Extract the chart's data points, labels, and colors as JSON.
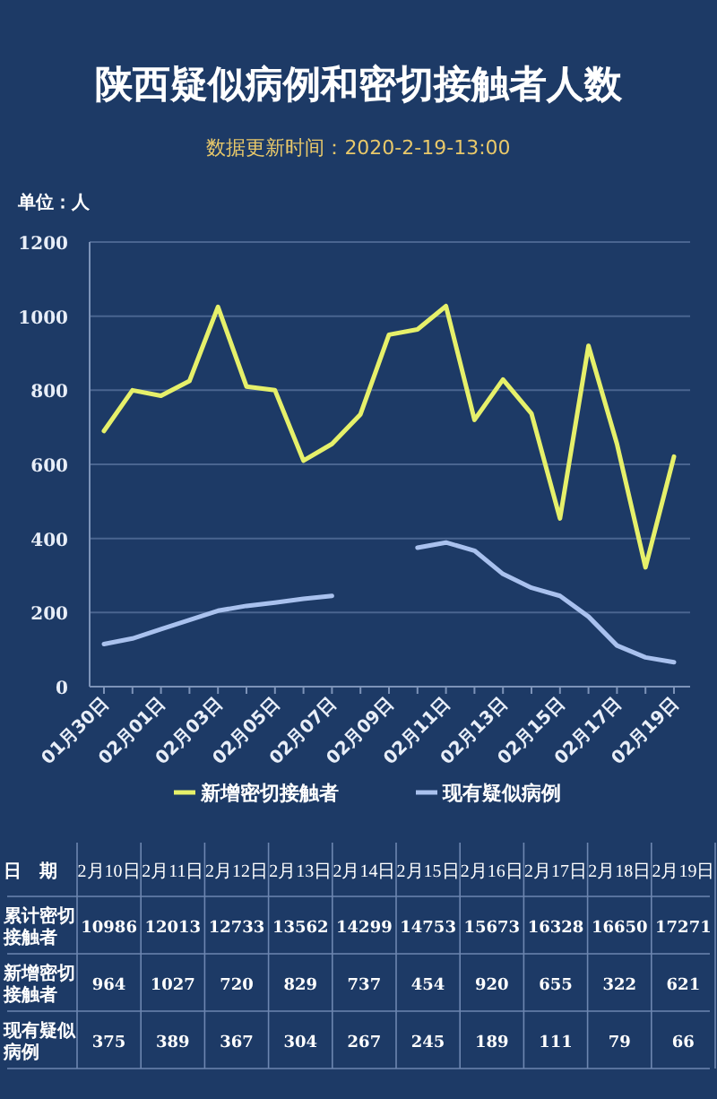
{
  "chart_data": [
    {
      "type": "line",
      "title": "陕西疑似病例和密切接触者人数",
      "subtitle": "数据更新时间：2020-2-19-13:00",
      "ylabel": "单位：人",
      "categories": [
        "01月30日",
        null,
        "02月01日",
        null,
        "02月03日",
        null,
        "02月05日",
        null,
        "02月07日",
        null,
        "02月09日",
        null,
        "02月11日",
        null,
        "02月13日",
        null,
        "02月15日",
        null,
        "02月17日",
        null,
        "02月19日"
      ],
      "series": [
        {
          "name": "新增密切接触者",
          "color": "#e6f06a",
          "values": [
            690,
            800,
            785,
            825,
            1025,
            810,
            800,
            610,
            655,
            735,
            950,
            964,
            1027,
            720,
            829,
            737,
            454,
            920,
            655,
            322,
            621
          ]
        },
        {
          "name": "现有疑似病例",
          "color": "#a9c1ee",
          "values": [
            115,
            130,
            155,
            180,
            205,
            218,
            227,
            237,
            245,
            null,
            null,
            375,
            389,
            367,
            304,
            267,
            245,
            189,
            111,
            79,
            66
          ]
        }
      ],
      "ylim": [
        0,
        1200
      ],
      "yticks": [
        0,
        200,
        400,
        600,
        800,
        1000,
        1200
      ],
      "grid": "y",
      "legend": "bottom",
      "line_style": "solid",
      "marker": "none"
    },
    {
      "type": "other",
      "annotations": [
        "日　期",
        "2月10日",
        "2月11日",
        "2月12日",
        "2月13日",
        "2月14日",
        "2月15日",
        "2月16日",
        "2月17日",
        "2月18日",
        "2月19日",
        "累计密切接触者",
        "10986",
        "12013",
        "12733",
        "13562",
        "14299",
        "14753",
        "15673",
        "16328",
        "16650",
        "17271",
        "新增密切接触者",
        "964",
        "1027",
        "720",
        "829",
        "737",
        "454",
        "920",
        "655",
        "322",
        "621",
        "现有疑似病例",
        "375",
        "389",
        "367",
        "304",
        "267",
        "245",
        "189",
        "111",
        "79",
        "66"
      ]
    }
  ]
}
